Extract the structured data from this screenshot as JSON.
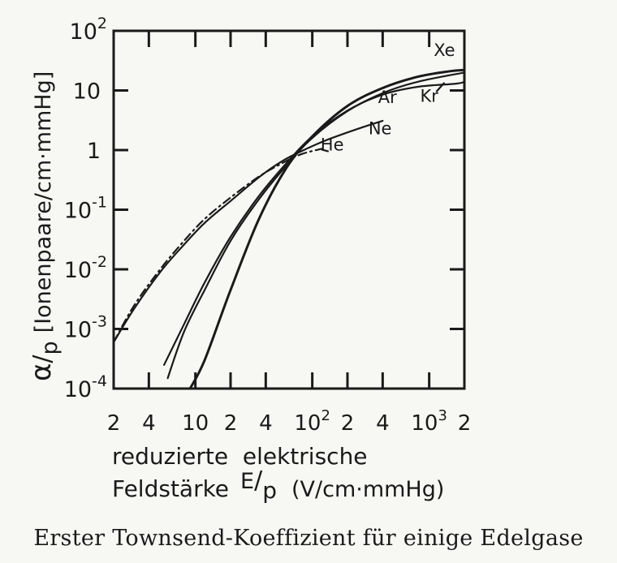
{
  "chart_data": {
    "type": "line",
    "scale": {
      "x": "log",
      "y": "log"
    },
    "xlim": [
      2,
      2000
    ],
    "ylim": [
      0.0001,
      100
    ],
    "ylabel": {
      "main": "α",
      "sub": "p",
      "unit": "[Ionenpaare/cm·mmHg]"
    },
    "xlabel": {
      "line1": "reduzierte  elektrische",
      "line2_a": "Feldstärke",
      "line2_E": "E",
      "line2_p": "p",
      "line2_unit": "(V/cm·mmHg)"
    },
    "x_ticks": [
      {
        "value": 2,
        "label": "2"
      },
      {
        "value": 4,
        "label": "4"
      },
      {
        "value": 10,
        "label": "10"
      },
      {
        "value": 20,
        "label": "2"
      },
      {
        "value": 40,
        "label": "4"
      },
      {
        "value": 100,
        "label": "10",
        "sup": "2"
      },
      {
        "value": 200,
        "label": "2"
      },
      {
        "value": 400,
        "label": "4"
      },
      {
        "value": 1000,
        "label": "10",
        "sup": "3"
      },
      {
        "value": 2000,
        "label": "2"
      }
    ],
    "y_ticks": [
      {
        "value": 0.0001,
        "label": "10",
        "sup": "-4"
      },
      {
        "value": 0.001,
        "label": "10",
        "sup": "-3"
      },
      {
        "value": 0.01,
        "label": "10",
        "sup": "-2"
      },
      {
        "value": 0.1,
        "label": "10",
        "sup": "-1"
      },
      {
        "value": 1,
        "label": "1"
      },
      {
        "value": 10,
        "label": "10"
      },
      {
        "value": 100,
        "label": "10",
        "sup": "2"
      }
    ],
    "series": [
      {
        "name": "He",
        "dash": "dashdot",
        "x": [
          2,
          3,
          5,
          8,
          12,
          20,
          35,
          55,
          80,
          120
        ],
        "y": [
          0.0006,
          0.0025,
          0.01,
          0.03,
          0.07,
          0.16,
          0.36,
          0.6,
          0.85,
          1.05
        ]
      },
      {
        "name": "Ne",
        "dash": "solid",
        "x": [
          2,
          3,
          5,
          8,
          12,
          20,
          35,
          55,
          80,
          130,
          250,
          400
        ],
        "y": [
          0.0006,
          0.0022,
          0.009,
          0.026,
          0.06,
          0.14,
          0.35,
          0.65,
          0.95,
          1.45,
          2.3,
          3.1
        ]
      },
      {
        "name": "Ar",
        "dash": "solid",
        "x": [
          5.8,
          8,
          12,
          20,
          35,
          60,
          100,
          200,
          400,
          800,
          2000
        ],
        "y": [
          0.00015,
          0.0009,
          0.0045,
          0.03,
          0.15,
          0.55,
          1.6,
          4.5,
          9,
          14,
          20
        ]
      },
      {
        "name": "Kr",
        "dash": "solid",
        "x": [
          5.4,
          8,
          12,
          20,
          35,
          60,
          100,
          200,
          400,
          800,
          1700,
          2000
        ],
        "y": [
          0.00025,
          0.0012,
          0.006,
          0.035,
          0.17,
          0.6,
          1.7,
          4.6,
          8.5,
          11.5,
          13,
          14
        ]
      },
      {
        "name": "Xe",
        "dash": "solid",
        "x": [
          9,
          12,
          20,
          35,
          60,
          100,
          200,
          400,
          800,
          1500,
          2000
        ],
        "y": [
          0.0001,
          0.0003,
          0.0045,
          0.07,
          0.5,
          1.7,
          5.5,
          11,
          17,
          21,
          22
        ]
      }
    ],
    "series_labels": [
      {
        "series": "Xe",
        "text": "Xe",
        "lx": 1350,
        "ly": 38
      },
      {
        "series": "Ar",
        "text": "Ar",
        "lx": 440,
        "ly": 6.2
      },
      {
        "series": "Kr",
        "text": "Kr",
        "lx": 1000,
        "ly": 6.5
      },
      {
        "series": "Ne",
        "text": "Ne",
        "lx": 380,
        "ly": 1.85
      },
      {
        "series": "He",
        "text": "He",
        "lx": 148,
        "ly": 0.98
      }
    ]
  },
  "caption": "Erster Townsend-Koeffizient für einige Edelgase",
  "colors": {
    "ink": "#1a1a1a",
    "paper": "#f7f7f4"
  }
}
